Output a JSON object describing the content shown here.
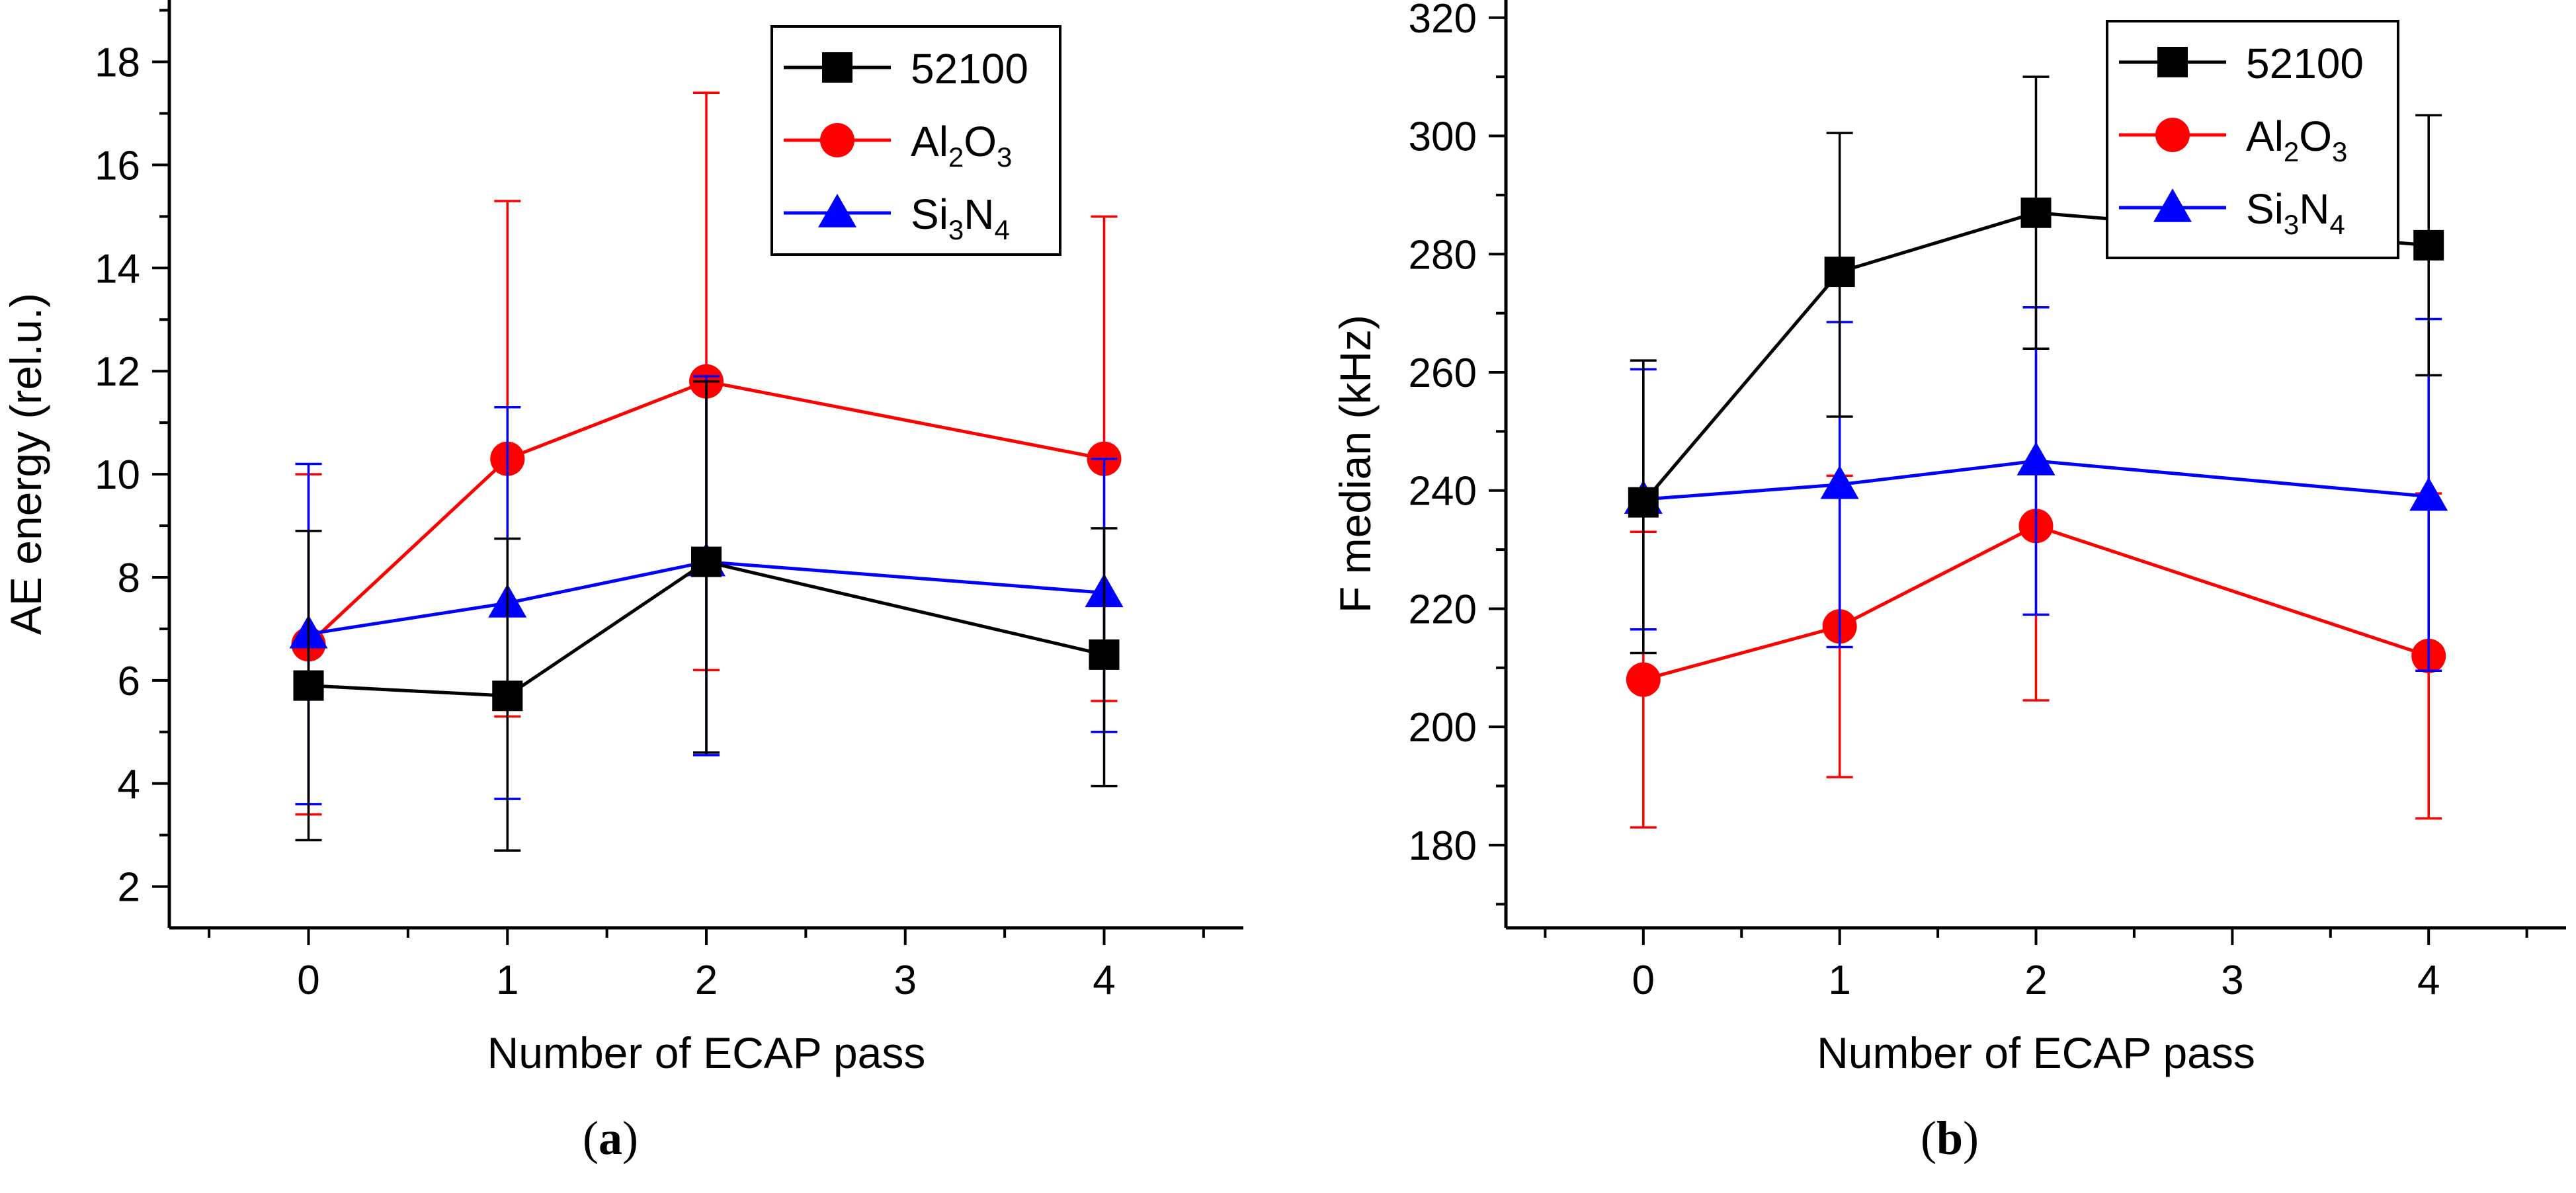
{
  "charts": [
    {
      "panel_label_open": "(",
      "panel_label_letter": "a",
      "panel_label_close": ")",
      "xlabel": "Number of ECAP pass",
      "ylabel": "AE energy (rel.u.)",
      "legend": [
        {
          "prefix": "52100",
          "sub1": "",
          "mid": "",
          "sub2": ""
        },
        {
          "prefix": "Al",
          "sub1": "2",
          "mid": "O",
          "sub2": "3"
        },
        {
          "prefix": "Si",
          "sub1": "3",
          "mid": "N",
          "sub2": "4"
        }
      ]
    },
    {
      "panel_label_open": "(",
      "panel_label_letter": "b",
      "panel_label_close": ")",
      "xlabel": "Number of ECAP pass",
      "ylabel": "F median (kHz)",
      "legend": [
        {
          "prefix": "52100",
          "sub1": "",
          "mid": "",
          "sub2": ""
        },
        {
          "prefix": "Al",
          "sub1": "2",
          "mid": "O",
          "sub2": "3"
        },
        {
          "prefix": "Si",
          "sub1": "3",
          "mid": "N",
          "sub2": "4"
        }
      ]
    }
  ],
  "chart_data": [
    {
      "type": "line",
      "title": "",
      "xlabel": "Number of ECAP pass",
      "ylabel": "AE energy (rel.u.)",
      "xlim": [
        -0.7,
        4.7
      ],
      "ylim": [
        1.2,
        19.2
      ],
      "xticks": [
        0,
        1,
        2,
        3,
        4
      ],
      "yticks": [
        2,
        4,
        6,
        8,
        10,
        12,
        14,
        16,
        18
      ],
      "grid": false,
      "legend_position": "top-right",
      "series": [
        {
          "name": "52100",
          "color": "#000000",
          "marker": "square",
          "x": [
            0,
            1,
            2,
            4
          ],
          "y": [
            5.9,
            5.7,
            8.3,
            6.5
          ],
          "err_low": [
            2.9,
            2.7,
            4.6,
            3.95
          ],
          "err_high": [
            8.9,
            8.75,
            11.8,
            8.95
          ]
        },
        {
          "name": "Al2O3",
          "color": "#ff0000",
          "marker": "circle",
          "x": [
            0,
            1,
            2,
            4
          ],
          "y": [
            6.7,
            10.3,
            11.8,
            10.3
          ],
          "err_low": [
            3.4,
            5.3,
            6.2,
            5.6
          ],
          "err_high": [
            10.0,
            15.3,
            17.4,
            15.0
          ]
        },
        {
          "name": "Si3N4",
          "color": "#0000ff",
          "marker": "triangle",
          "x": [
            0,
            1,
            2,
            4
          ],
          "y": [
            6.9,
            7.5,
            8.3,
            7.7
          ],
          "err_low": [
            3.6,
            3.7,
            4.55,
            5.0
          ],
          "err_high": [
            10.2,
            11.3,
            11.9,
            10.3
          ]
        }
      ]
    },
    {
      "type": "line",
      "title": "",
      "xlabel": "Number of ECAP pass",
      "ylabel": "F median (kHz)",
      "xlim": [
        -0.7,
        4.7
      ],
      "ylim": [
        166,
        323
      ],
      "xticks": [
        0,
        1,
        2,
        3,
        4
      ],
      "yticks": [
        180,
        200,
        220,
        240,
        260,
        280,
        300,
        320
      ],
      "grid": false,
      "legend_position": "top-right",
      "series": [
        {
          "name": "52100",
          "color": "#000000",
          "marker": "square",
          "x": [
            0,
            1,
            2,
            4
          ],
          "y": [
            238,
            277,
            287,
            281.5
          ],
          "err_low": [
            212.5,
            252.5,
            264,
            259.5
          ],
          "err_high": [
            262,
            300.5,
            310,
            303.5
          ]
        },
        {
          "name": "Al2O3",
          "color": "#ff0000",
          "marker": "circle",
          "x": [
            0,
            1,
            2,
            4
          ],
          "y": [
            208,
            217,
            234,
            212
          ],
          "err_low": [
            183,
            191.5,
            204.5,
            184.5
          ],
          "err_high": [
            233,
            242.5,
            264,
            239.5
          ]
        },
        {
          "name": "Si3N4",
          "color": "#0000ff",
          "marker": "triangle",
          "x": [
            0,
            1,
            2,
            4
          ],
          "y": [
            238.5,
            241,
            245,
            239
          ],
          "err_low": [
            216.5,
            213.5,
            219,
            209.5
          ],
          "err_high": [
            260.5,
            268.5,
            271,
            269
          ]
        }
      ]
    }
  ]
}
